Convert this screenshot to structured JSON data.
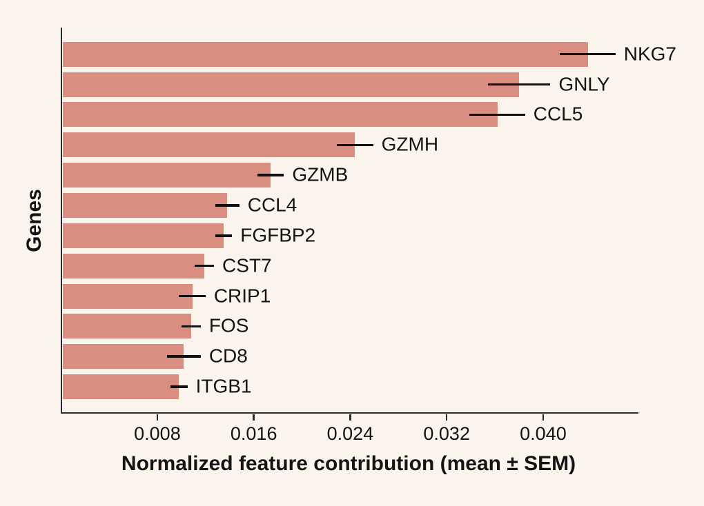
{
  "figure": {
    "background_color": "#faf4ec",
    "bar_color": "#d98e81",
    "axis_color": "#2b2b2b",
    "text_color": "#141414",
    "error_bar_color": "#111111"
  },
  "chart_data": {
    "type": "bar",
    "orientation": "horizontal",
    "title": "",
    "xlabel": "Normalized feature contribution (mean ± SEM)",
    "ylabel": "Genes",
    "categories": [
      "NKG7",
      "GNLY",
      "CCL5",
      "GZMH",
      "GZMB",
      "CCL4",
      "FGFBP2",
      "CST7",
      "CRIP1",
      "FOS",
      "CD8",
      "ITGB1"
    ],
    "series": [
      {
        "name": "Normalized feature contribution (mean)",
        "values": [
          0.0437,
          0.038,
          0.0362,
          0.0244,
          0.0174,
          0.0138,
          0.0135,
          0.0119,
          0.0109,
          0.0108,
          0.0102,
          0.0098
        ],
        "sem": [
          0.0023,
          0.0026,
          0.0023,
          0.0015,
          0.0011,
          0.001,
          0.0007,
          0.0008,
          0.0011,
          0.0008,
          0.0014,
          0.0007
        ]
      }
    ],
    "error_bars": "horizontal line, mean ± SEM, no caps",
    "bar_label_style": "gene name printed to the right of each error bar",
    "xlim": [
      0,
      0.0478
    ],
    "xticks": [
      0.008,
      0.016,
      0.024,
      0.032,
      0.04
    ],
    "xtick_labels": [
      "0.008",
      "0.016",
      "0.024",
      "0.032",
      "0.040"
    ],
    "grid": false,
    "legend": false
  }
}
